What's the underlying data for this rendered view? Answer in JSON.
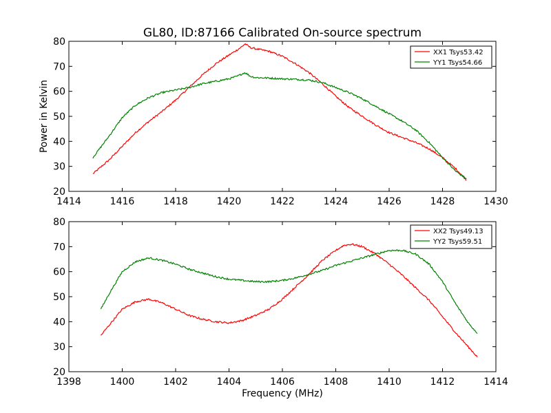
{
  "figure": {
    "title": "GL80, ID:87166 Calibrated On-source spectrum",
    "background": "#ffffff"
  },
  "chart_data": [
    {
      "type": "line",
      "xlabel": "",
      "ylabel": "Power in Kelvin",
      "xlim": [
        1414,
        1430
      ],
      "ylim": [
        20,
        80
      ],
      "xticks": [
        1414,
        1416,
        1418,
        1420,
        1422,
        1424,
        1426,
        1428,
        1430
      ],
      "yticks": [
        20,
        30,
        40,
        50,
        60,
        70,
        80
      ],
      "grid": false,
      "legend_position": "top-right",
      "series": [
        {
          "name": "XX1 Tsys53.42",
          "color": "#ff0000",
          "x": [
            1414.9,
            1415.5,
            1416.0,
            1416.5,
            1417.0,
            1417.5,
            1418.0,
            1418.5,
            1419.0,
            1419.5,
            1420.0,
            1420.3,
            1420.5,
            1420.6,
            1420.8,
            1421.0,
            1421.5,
            1422.0,
            1422.5,
            1423.0,
            1423.5,
            1424.0,
            1424.5,
            1425.0,
            1425.5,
            1426.0,
            1426.5,
            1427.0,
            1427.5,
            1428.0,
            1428.5,
            1428.9
          ],
          "y": [
            27.0,
            32.5,
            38.0,
            43.5,
            48.0,
            52.0,
            56.5,
            61.5,
            66.5,
            71.0,
            74.5,
            76.5,
            78.0,
            79.0,
            77.5,
            77.0,
            76.0,
            74.0,
            71.0,
            67.5,
            63.0,
            58.0,
            53.5,
            50.0,
            46.5,
            43.5,
            41.5,
            39.5,
            37.0,
            33.5,
            29.0,
            24.5
          ]
        },
        {
          "name": "YY1 Tsys54.66",
          "color": "#008000",
          "x": [
            1414.9,
            1415.5,
            1416.0,
            1416.5,
            1417.0,
            1417.5,
            1418.0,
            1418.5,
            1419.0,
            1419.5,
            1420.0,
            1420.3,
            1420.5,
            1420.6,
            1420.8,
            1421.0,
            1421.5,
            1422.0,
            1422.5,
            1423.0,
            1423.5,
            1424.0,
            1424.5,
            1425.0,
            1425.5,
            1426.0,
            1426.5,
            1427.0,
            1427.5,
            1428.0,
            1428.5,
            1428.9
          ],
          "y": [
            33.5,
            42.0,
            49.5,
            54.5,
            57.5,
            59.5,
            60.5,
            61.5,
            63.0,
            64.0,
            65.0,
            66.0,
            67.0,
            67.5,
            66.0,
            65.5,
            65.3,
            65.0,
            64.8,
            64.5,
            63.5,
            61.5,
            59.5,
            57.0,
            54.0,
            51.0,
            48.0,
            44.5,
            39.5,
            33.5,
            28.0,
            25.0
          ]
        }
      ]
    },
    {
      "type": "line",
      "xlabel": "Frequency (MHz)",
      "ylabel": "",
      "xlim": [
        1398,
        1414
      ],
      "ylim": [
        20,
        80
      ],
      "xticks": [
        1398,
        1400,
        1402,
        1404,
        1406,
        1408,
        1410,
        1412,
        1414
      ],
      "yticks": [
        20,
        30,
        40,
        50,
        60,
        70,
        80
      ],
      "grid": false,
      "legend_position": "top-right",
      "series": [
        {
          "name": "XX2 Tsys49.13",
          "color": "#ff0000",
          "x": [
            1399.2,
            1399.5,
            1400.0,
            1400.5,
            1401.0,
            1401.5,
            1402.0,
            1402.5,
            1403.0,
            1403.5,
            1404.0,
            1404.5,
            1405.0,
            1405.5,
            1406.0,
            1406.5,
            1407.0,
            1407.5,
            1408.0,
            1408.3,
            1408.6,
            1409.0,
            1409.5,
            1410.0,
            1410.5,
            1411.0,
            1411.5,
            1412.0,
            1412.5,
            1413.0,
            1413.3
          ],
          "y": [
            34.5,
            38.5,
            45.0,
            48.0,
            49.0,
            47.5,
            45.0,
            42.5,
            41.0,
            40.0,
            39.5,
            40.5,
            42.5,
            45.0,
            49.0,
            54.0,
            59.0,
            64.5,
            68.5,
            70.5,
            71.0,
            70.0,
            67.0,
            63.0,
            58.5,
            53.5,
            48.5,
            42.0,
            35.5,
            29.5,
            26.0
          ]
        },
        {
          "name": "YY2 Tsys59.51",
          "color": "#008000",
          "x": [
            1399.2,
            1399.5,
            1400.0,
            1400.5,
            1401.0,
            1401.5,
            1402.0,
            1402.5,
            1403.0,
            1403.5,
            1404.0,
            1404.5,
            1405.0,
            1405.5,
            1406.0,
            1406.5,
            1407.0,
            1407.5,
            1408.0,
            1408.5,
            1409.0,
            1409.5,
            1410.0,
            1410.5,
            1411.0,
            1411.5,
            1412.0,
            1412.5,
            1413.0,
            1413.3
          ],
          "y": [
            45.0,
            51.0,
            60.0,
            64.0,
            65.5,
            64.5,
            63.0,
            61.0,
            59.5,
            58.0,
            57.0,
            56.5,
            56.0,
            56.0,
            56.5,
            57.5,
            59.0,
            60.5,
            62.5,
            64.0,
            65.5,
            67.0,
            68.5,
            68.5,
            67.0,
            63.0,
            56.0,
            47.0,
            39.0,
            35.5
          ]
        }
      ]
    }
  ]
}
